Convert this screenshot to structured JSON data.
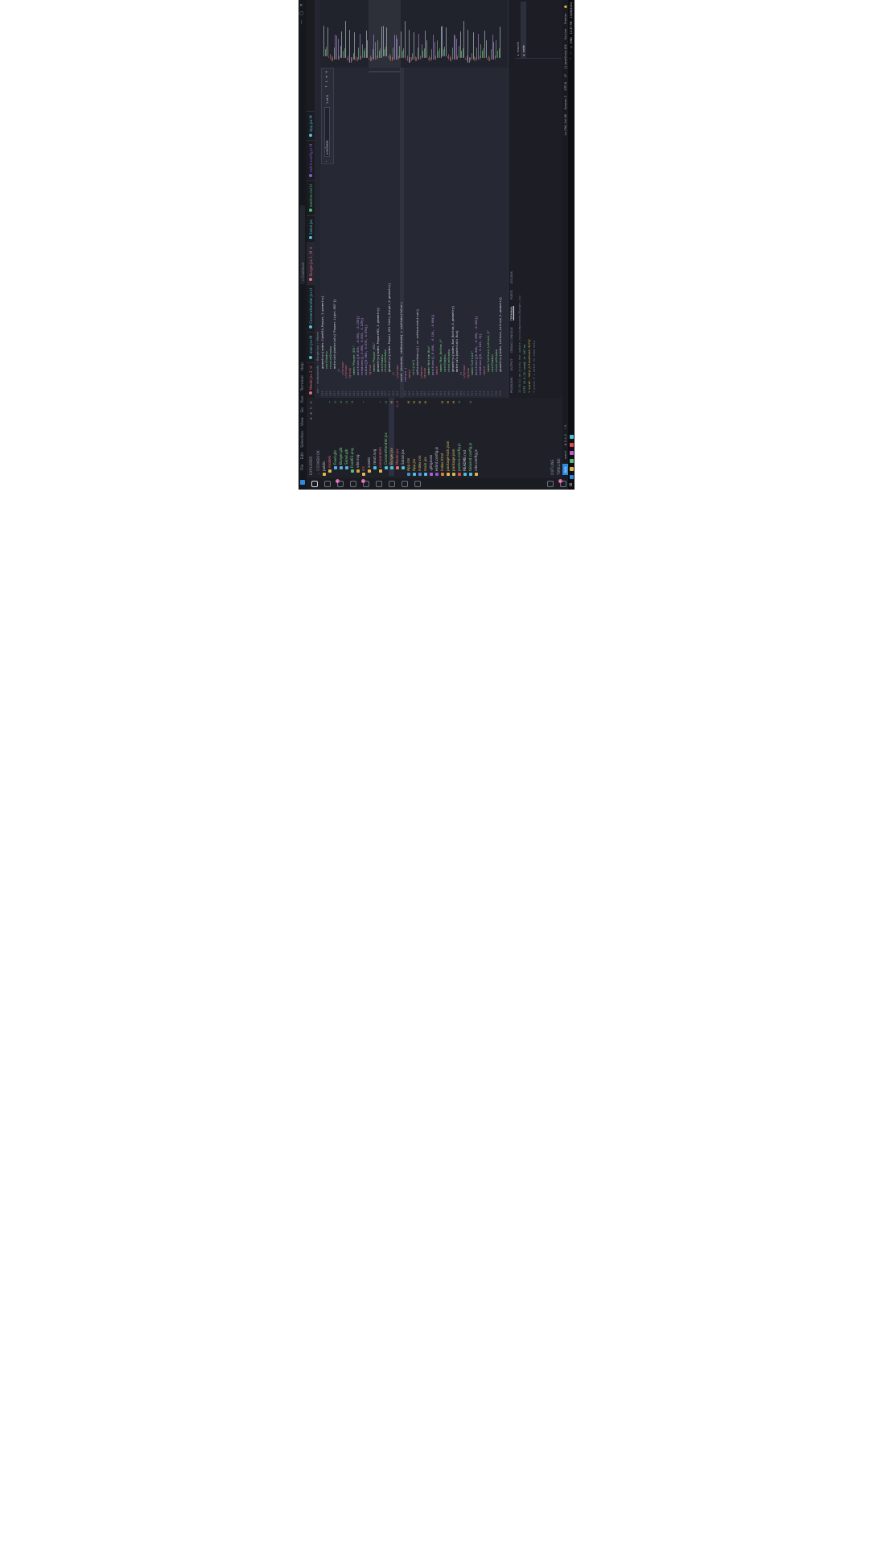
{
  "titlebar": {
    "menus": [
      "File",
      "Edit",
      "Selection",
      "View",
      "Go",
      "Run",
      "Terminal",
      "Help"
    ],
    "search": "Cookbook",
    "controls": [
      "—",
      "▢",
      "✕"
    ]
  },
  "activity": {
    "items": [
      {
        "name": "explorer-icon",
        "badge": ""
      },
      {
        "name": "search-icon",
        "badge": ""
      },
      {
        "name": "source-control-icon",
        "badge": "1"
      },
      {
        "name": "run-debug-icon",
        "badge": ""
      },
      {
        "name": "extensions-icon",
        "badge": "2"
      },
      {
        "name": "testing-icon",
        "badge": ""
      },
      {
        "name": "remote-icon",
        "badge": ""
      },
      {
        "name": "copilot-icon",
        "badge": ""
      },
      {
        "name": "docker-icon",
        "badge": ""
      }
    ],
    "bottom": [
      {
        "name": "account-icon"
      },
      {
        "name": "settings-icon",
        "badge": "1"
      }
    ]
  },
  "sidebar": {
    "title": "EXPLORER",
    "root": "COOKBOOK",
    "files": [
      {
        "label": "public",
        "color": "#e0b84a",
        "status": "",
        "status_color": "#4ec27a"
      },
      {
        "label": "models",
        "color": "#e0b84a",
        "status": "•",
        "status_color": "#4ec27a"
      },
      {
        "label": "Food.glb",
        "color": "#59b0e0",
        "status": "U",
        "status_color": "#4ec27a"
      },
      {
        "label": "Burger.glb",
        "color": "#59b0e0",
        "status": "U",
        "status_color": "#4ec27a"
      },
      {
        "label": "Salad.glb",
        "color": "#59b0e0",
        "status": "U",
        "status_color": "#4ec27a"
      },
      {
        "label": "Food01.png",
        "color": "#4ec27a",
        "status": "U",
        "status_color": "#4ec27a"
      },
      {
        "label": "vite.svg",
        "color": "#e0a23a",
        "status": "",
        "status_color": "#4ec27a"
      },
      {
        "label": "src",
        "color": "#e0b84a",
        "status": "•",
        "status_color": "#e46d7a"
      },
      {
        "label": "assets",
        "color": "#e0b84a",
        "status": "",
        "status_color": "#4ec27a"
      },
      {
        "label": "react.svg",
        "color": "#4ec2d8",
        "status": "",
        "status_color": "#4ec27a"
      },
      {
        "label": "components",
        "color": "#e0b84a",
        "status": "•",
        "status_color": "#e46d7a"
      },
      {
        "label": "CameraHandler.jsx",
        "color": "#4ec2d8",
        "status": "U",
        "status_color": "#4ec27a"
      },
      {
        "label": "Burger.jsx",
        "color": "#4ec2d8",
        "status": "M",
        "status_color": "#e0b84a"
      },
      {
        "label": "Model.jsx",
        "color": "#e46d7a",
        "status": "2, U",
        "status_color": "#e46d7a"
      },
      {
        "label": "Salad.jsx",
        "color": "#4ec2d8",
        "status": "",
        "status_color": "#4ec27a"
      },
      {
        "label": "App.css",
        "color": "#4e8ae0",
        "status": "M",
        "status_color": "#e0b84a"
      },
      {
        "label": "App.jsx",
        "color": "#4ec2d8",
        "status": "M",
        "status_color": "#e0b84a"
      },
      {
        "label": "index.css",
        "color": "#4e8ae0",
        "status": "M",
        "status_color": "#e0b84a"
      },
      {
        "label": "main.jsx",
        "color": "#4ec2d8",
        "status": "M",
        "status_color": "#e0b84a"
      },
      {
        "label": ".gitignore",
        "color": "#b45ad6",
        "status": "",
        "status_color": "#4ec27a"
      },
      {
        "label": "eslint.config.js",
        "color": "#8a5ad6",
        "status": "",
        "status_color": "#4ec27a"
      },
      {
        "label": "index.html",
        "color": "#e07a3a",
        "status": "M",
        "status_color": "#e0b84a"
      },
      {
        "label": "package-lock.json",
        "color": "#e0b84a",
        "status": "M",
        "status_color": "#e0b84a"
      },
      {
        "label": "package.json",
        "color": "#e0b84a",
        "status": "M",
        "status_color": "#e0b84a"
      },
      {
        "label": "postcss.config.js",
        "color": "#e04a4a",
        "status": "U",
        "status_color": "#4ec27a"
      },
      {
        "label": "README.md",
        "color": "#4ec2d8",
        "status": "",
        "status_color": "#4ec27a"
      },
      {
        "label": "tailwind.config.js",
        "color": "#4ec2d8",
        "status": "U",
        "status_color": "#4ec27a"
      },
      {
        "label": "vite.config.js",
        "color": "#e0b84a",
        "status": "",
        "status_color": "#4ec27a"
      }
    ],
    "outline": "OUTLINE",
    "timeline": "TIMELINE"
  },
  "tabs": [
    {
      "label": "Model.jsx 2, U",
      "color": "#e46d7a",
      "active": false
    },
    {
      "label": "main.jsx M",
      "color": "#4ec2d8",
      "active": false
    },
    {
      "label": "CameraHandler.jsx U",
      "color": "#4ec2d8",
      "active": false
    },
    {
      "label": "Burger.jsx 1, M",
      "color": "#e46d7a",
      "active": true
    },
    {
      "label": "Salad.jsx",
      "color": "#4ec2d8",
      "active": false
    },
    {
      "label": "readme.md U",
      "color": "#4ec27a",
      "active": false
    },
    {
      "label": "eslint.config.js M",
      "color": "#8a5ad6",
      "active": false
    },
    {
      "label": "App.jsx M",
      "color": "#4ec2d8",
      "active": false
    }
  ],
  "breadcrumb": [
    "src",
    "components",
    "Burger.jsx",
    "Model"
  ],
  "find": {
    "query": "useState",
    "count": "1 of 4"
  },
  "editor": {
    "lines": [
      {
        "n": "234",
        "t": "geometry={nodes.Cube054_Pepper_1.geometry}",
        "c": "#d6dae6",
        "i": 10
      },
      {
        "n": "235",
        "t": "castShadow",
        "c": "#7fd48a",
        "i": 10
      },
      {
        "n": "236",
        "t": "receiveShadow",
        "c": "#7fd48a",
        "i": 10
      },
      {
        "n": "237",
        "t": "material={materials['Pepper.Light.002']}",
        "c": "#d6dae6",
        "i": 10
      },
      {
        "n": "238",
        "t": "/>",
        "c": "#8a8fa3",
        "i": 8
      },
      {
        "n": "239",
        "t": "</group>",
        "c": "#e46d7a",
        "i": 6
      },
      {
        "n": "240",
        "t": "</group>",
        "c": "#e46d7a",
        "i": 4
      },
      {
        "n": "241",
        "t": "<group",
        "c": "#e46d7a",
        "i": 4
      },
      {
        "n": "242",
        "t": "name=\"Pepper_001\"",
        "c": "#7fd48a",
        "i": 6
      },
      {
        "n": "243",
        "t": "position={[0.026, -0.005, -0.135]}",
        "c": "#c79bf0",
        "i": 6
      },
      {
        "n": "244",
        "t": "rotation={[-3.085, 0.833, 3.129]}",
        "c": "#c79bf0",
        "i": 6
      },
      {
        "n": "245",
        "t": "scale={[0.063, 0.070, 0.074]}",
        "c": "#c79bf0",
        "i": 6
      },
      {
        "n": "246",
        "t": "<group",
        "c": "#e46d7a",
        "i": 6
      },
      {
        "n": "247",
        "t": "name=\"Pepper_001\"",
        "c": "#7fd48a",
        "i": 8
      },
      {
        "n": "248",
        "t": "geometry={nodes.Pepper001_1.geometry}",
        "c": "#d6dae6",
        "i": 8
      },
      {
        "n": "249",
        "t": "castShadow",
        "c": "#7fd48a",
        "i": 8
      },
      {
        "n": "250",
        "t": "receiveShadow",
        "c": "#7fd48a",
        "i": 8
      },
      {
        "n": "251",
        "t": "geometry={nodes.Pepper_001.Patty_Burger_0.geometry}",
        "c": "#d6dae6",
        "i": 8
      },
      {
        "n": "252",
        "t": "/>",
        "c": "#8a8fa3",
        "i": 6
      },
      {
        "n": "253",
        "t": "</group>",
        "c": "#e46d7a",
        "i": 4
      },
      {
        "n": "254",
        "t": "const [hovered, setHovered] = useState(false);",
        "c": "#d6dae6",
        "i": 2
      },
      {
        "n": "255",
        "t": "return (",
        "c": "#c79bf0",
        "i": 2
      },
      {
        "n": "256",
        "t": "<mesh",
        "c": "#e46d7a",
        "i": 4
      },
      {
        "n": "257",
        "t": "ref={ref}",
        "c": "#7fd48a",
        "i": 6
      },
      {
        "n": "258",
        "t": "onPointerOver={() => setHovered(true)}",
        "c": "#d6dae6",
        "i": 6
      },
      {
        "n": "259",
        "t": "</mesh>",
        "c": "#e46d7a",
        "i": 4
      },
      {
        "n": "260",
        "t": "<group",
        "c": "#e46d7a",
        "i": 4
      },
      {
        "n": "261",
        "t": "name=\"Bottom_Bun\"",
        "c": "#7fd48a",
        "i": 6
      },
      {
        "n": "262",
        "t": "position={[-0.006, -0.154, -0.004]}",
        "c": "#c79bf0",
        "i": 6
      },
      {
        "n": "263",
        "t": "<mesh",
        "c": "#e46d7a",
        "i": 6
      },
      {
        "n": "264",
        "t": "name=\"Bun_Bottom_0\"",
        "c": "#7fd48a",
        "i": 8
      },
      {
        "n": "265",
        "t": "castShadow",
        "c": "#7fd48a",
        "i": 8
      },
      {
        "n": "266",
        "t": "receiveShadow",
        "c": "#7fd48a",
        "i": 8
      },
      {
        "n": "267",
        "t": "geometry={nodes.Bun_Bottom_0.geometry}",
        "c": "#d6dae6",
        "i": 8
      },
      {
        "n": "268",
        "t": "material={materials.Bun}",
        "c": "#d6dae6",
        "i": 8
      },
      {
        "n": "269",
        "t": "/>",
        "c": "#8a8fa3",
        "i": 6
      },
      {
        "n": "270",
        "t": "</group>",
        "c": "#e46d7a",
        "i": 4
      },
      {
        "n": "271",
        "t": "<group",
        "c": "#e46d7a",
        "i": 4
      },
      {
        "n": "272",
        "t": "name=\"Lettuce\"",
        "c": "#7fd48a",
        "i": 6
      },
      {
        "n": "273",
        "t": "position={[0.004, -0.095, -0.003]}",
        "c": "#c79bf0",
        "i": 6
      },
      {
        "n": "274",
        "t": "rotation={[0, 0.143, 0]}",
        "c": "#c79bf0",
        "i": 6
      },
      {
        "n": "275",
        "t": "<mesh",
        "c": "#e46d7a",
        "i": 6
      },
      {
        "n": "276",
        "t": "name=\"Lettuce_Lettuce_0\"",
        "c": "#7fd48a",
        "i": 8
      },
      {
        "n": "277",
        "t": "castShadow",
        "c": "#7fd48a",
        "i": 8
      },
      {
        "n": "278",
        "t": "receiveShadow",
        "c": "#7fd48a",
        "i": 8
      },
      {
        "n": "279",
        "t": "geometry={nodes.Lettuce_Lettuce_0.geometry}",
        "c": "#d6dae6",
        "i": 8
      }
    ],
    "current_line": "254"
  },
  "terminal": {
    "tabs": [
      "PROBLEMS",
      "OUTPUT",
      "DEBUG CONSOLE",
      "TERMINAL",
      "PORTS",
      "GITLENS"
    ],
    "active": "TERMINAL",
    "lines": [
      {
        "t": "11:36:51 pm [vite] hmr update /src/components/Burger.jsx",
        "k": "d"
      },
      {
        "t": "VITE v5.4.10  ready in 347 ms",
        "k": "g"
      },
      {
        "t": "➜  Local:   http://localhost:5173/",
        "k": "y"
      },
      {
        "t": "➜  press h + enter to show help",
        "k": "d"
      }
    ],
    "shells": [
      {
        "label": "esbuild",
        "active": false
      },
      {
        "label": "node",
        "active": true
      }
    ]
  },
  "status": {
    "remote": "WSL",
    "left": [
      "main*",
      "⊗ 2  ⚠ 0",
      "⑂ 0"
    ],
    "right": [
      "Ln 254, Col 48",
      "Spaces: 2",
      "UTF-8",
      "LF",
      "{} JavaScript JSX",
      "Go Live",
      "Prettier"
    ]
  },
  "taskbar": {
    "icons": [
      "#2f8ae0",
      "#e0b84a",
      "#4ec27a",
      "#c05ad6",
      "#e04a4a",
      "#4ec2d8"
    ],
    "tray": [
      "ENG",
      "11:37 PM",
      "10/28/2024"
    ]
  }
}
